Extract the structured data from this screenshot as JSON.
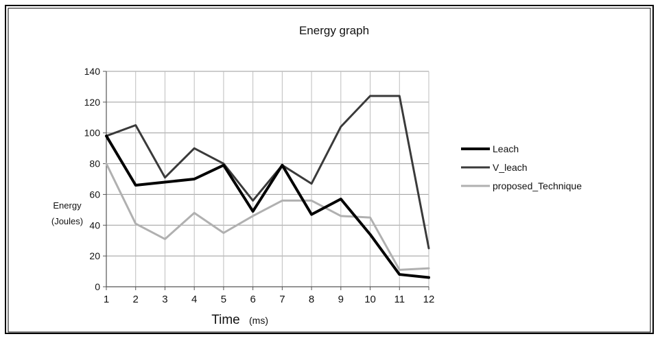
{
  "chart_data": {
    "type": "line",
    "title": "Energy graph",
    "xlabel": "Time",
    "xlabel_unit": "(ms)",
    "ylabel_line1": "Energy",
    "ylabel_line2": "(Joules)",
    "x": [
      1,
      2,
      3,
      4,
      5,
      6,
      7,
      8,
      9,
      10,
      11,
      12
    ],
    "ylim": [
      0,
      140
    ],
    "yticks": [
      0,
      20,
      40,
      60,
      80,
      100,
      120,
      140
    ],
    "grid": true,
    "legend_position": "right",
    "series": [
      {
        "name": "Leach",
        "color": "#000000",
        "values": [
          98,
          66,
          68,
          70,
          79,
          49,
          79,
          47,
          57,
          34,
          8,
          6
        ]
      },
      {
        "name": "V_leach",
        "color": "#3a3a3a",
        "values": [
          98,
          105,
          71,
          90,
          80,
          56,
          79,
          67,
          104,
          124,
          124,
          25
        ]
      },
      {
        "name": "proposed_Technique",
        "color": "#b0b0b0",
        "values": [
          80,
          41,
          31,
          48,
          35,
          46,
          56,
          56,
          46,
          45,
          11,
          12
        ]
      }
    ]
  }
}
